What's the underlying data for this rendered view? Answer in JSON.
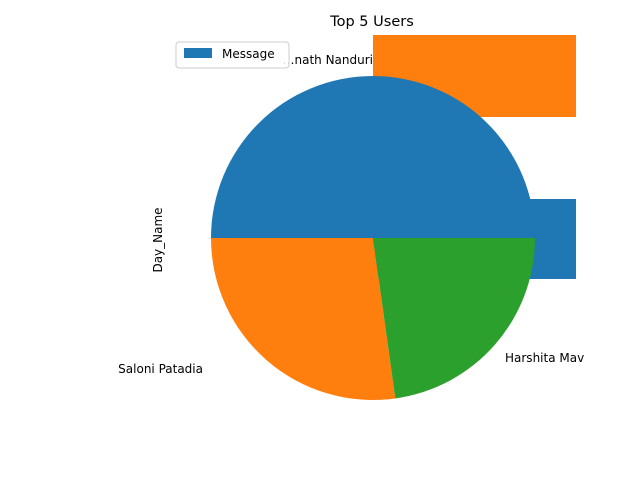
{
  "chart_data": [
    {
      "type": "pie",
      "title": "Top 5 Users",
      "ylabel": "Day_Name",
      "slices": [
        {
          "label": "…nath Nanduri",
          "value": 50.0,
          "color": "#1f77b4"
        },
        {
          "label": "Saloni Patadia",
          "value": 27.2,
          "color": "#ff7f0e"
        },
        {
          "label": "Harshita Mav",
          "value": 22.8,
          "color": "#2ca02c"
        }
      ]
    },
    {
      "type": "bar",
      "orientation": "horizontal",
      "series": [
        {
          "name": "Message",
          "color": "#1f77b4",
          "values": [
            1
          ]
        }
      ],
      "legend_placement": "upper-left"
    }
  ],
  "overlay_bar_colors": [
    "#ff7f0e",
    "#1f77b4"
  ]
}
